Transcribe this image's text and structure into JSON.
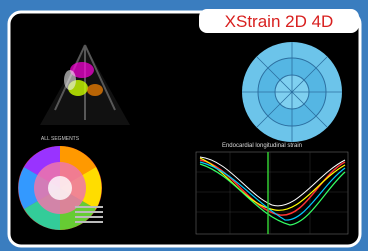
{
  "badge": {
    "title": "XStrain 2D 4D"
  },
  "panels": {
    "segments_label": "ALL SEGMENTS",
    "graph_title": "Endocardial longitudinal strain"
  }
}
